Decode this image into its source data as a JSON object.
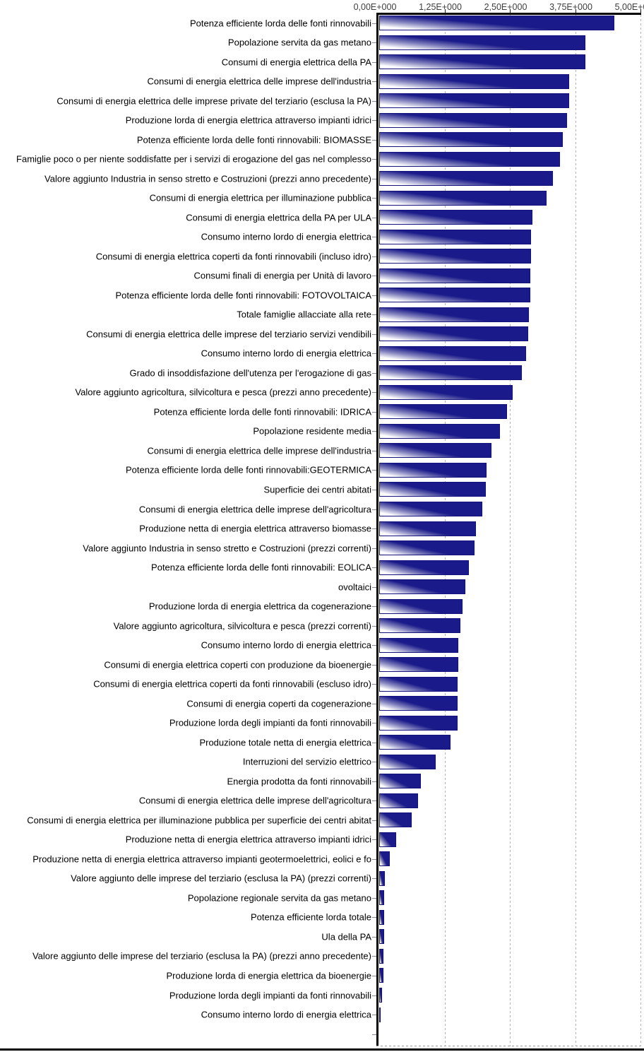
{
  "chart_data": {
    "type": "bar",
    "orientation": "horizontal",
    "title": "",
    "x_axis": {
      "min": 0,
      "max": 5,
      "tick_labels": [
        "0,00E+000",
        "1,25E+000",
        "2,50E+000",
        "3,75E+000",
        "5,00E+000"
      ],
      "gridlines": "dashed-vertical"
    },
    "categories": [
      "Potenza efficiente lorda delle fonti rinnovabili",
      "Popolazione servita da gas metano",
      "Consumi di energia elettrica della PA",
      "Consumi di energia elettrica delle imprese dell'industria",
      "Consumi di energia elettrica delle imprese private del terziario (esclusa la PA)",
      "Produzione lorda di energia elettrica attraverso impianti idrici",
      "Potenza efficiente lorda delle fonti rinnovabili: BIOMASSE",
      "Famiglie poco o per niente soddisfatte per i servizi di erogazione del gas nel complesso",
      "Valore aggiunto Industria in senso stretto e Costruzioni (prezzi anno precedente)",
      "Consumi di energia elettrica per illuminazione pubblica",
      "Consumi di energia elettrica della PA per ULA",
      "Consumo interno lordo di energia elettrica",
      "Consumi di energia elettrica coperti da fonti rinnovabili (incluso idro)",
      "Consumi finali di energia per Unità di lavoro",
      "Potenza efficiente lorda delle fonti rinnovabili: FOTOVOLTAICA",
      "Totale famiglie allacciate alla rete",
      "Consumi di energia elettrica delle imprese del terziario servizi vendibili",
      "Consumo interno lordo di energia elettrica",
      "Grado di insoddisfazione dell'utenza per l'erogazione di gas",
      "Valore aggiunto agricoltura, silvicoltura e pesca (prezzi anno precedente)",
      "Potenza efficiente lorda delle fonti rinnovabili: IDRICA",
      "Popolazione residente media",
      "Consumi di energia elettrica delle imprese dell'industria",
      "Potenza efficiente lorda delle fonti rinnovabili:GEOTERMICA",
      "Superficie dei centri abitati",
      "Consumi di energia elettrica delle imprese dell'agricoltura",
      "Produzione netta di energia elettrica attraverso biomasse",
      "Valore aggiunto Industria in senso stretto e Costruzioni (prezzi correnti)",
      "Potenza efficiente lorda delle fonti rinnovabili: EOLICA",
      "ovoltaici",
      "Produzione lorda di energia elettrica da cogenerazione",
      "Valore aggiunto agricoltura, silvicoltura e pesca (prezzi correnti)",
      "Consumo interno lordo di energia elettrica",
      "Consumi di energia elettrica coperti con produzione da bioenergie",
      "Consumi di energia elettrica coperti da fonti rinnovabili (escluso idro)",
      "Consumi di energia coperti da cogenerazione",
      "Produzione lorda degli impianti da fonti rinnovabili",
      "Produzione totale netta di energia elettrica",
      "Interruzioni del servizio elettrico",
      "Energia prodotta da fonti rinnovabili",
      "Consumi di energia elettrica delle imprese dell'agricoltura",
      "Consumi di energia elettrica per illuminazione pubblica per superficie dei centri abitat",
      "Produzione netta di energia elettrica attraverso impianti idrici",
      "Produzione netta di energia elettrica attraverso impianti geotermoelettrici, eolici e fo",
      "Valore aggiunto delle imprese del terziario (esclusa la PA) (prezzi correnti)",
      "Popolazione regionale servita da gas metano",
      "Potenza efficiente lorda totale",
      "Ula della PA",
      "Valore aggiunto delle imprese del terziario (esclusa la PA) (prezzi anno precedente)",
      "Produzione lorda di energia elettrica da bioenergie",
      "Produzione lorda degli impianti da fonti rinnovabili",
      "Consumo interno lordo di energia elettrica",
      ""
    ],
    "values": [
      4.5,
      3.95,
      3.95,
      3.63,
      3.63,
      3.59,
      3.51,
      3.46,
      3.32,
      3.2,
      2.93,
      2.9,
      2.9,
      2.89,
      2.89,
      2.86,
      2.85,
      2.81,
      2.73,
      2.56,
      2.44,
      2.31,
      2.15,
      2.05,
      2.04,
      1.97,
      1.85,
      1.83,
      1.71,
      1.65,
      1.59,
      1.56,
      1.51,
      1.51,
      1.5,
      1.5,
      1.5,
      1.36,
      1.08,
      0.8,
      0.74,
      0.62,
      0.32,
      0.2,
      0.11,
      0.1,
      0.1,
      0.09,
      0.08,
      0.08,
      0.05,
      0.02,
      null
    ],
    "colors": {
      "bar_dark": "#1a1a8a",
      "bar_mid": "#8080bd",
      "bar_light": "#ffffff",
      "bar_border": "#12127a",
      "axis": "#000000",
      "gridline": "#b3b3b3",
      "tick_label": "#3d3d3d",
      "category_label": "#000000"
    }
  }
}
